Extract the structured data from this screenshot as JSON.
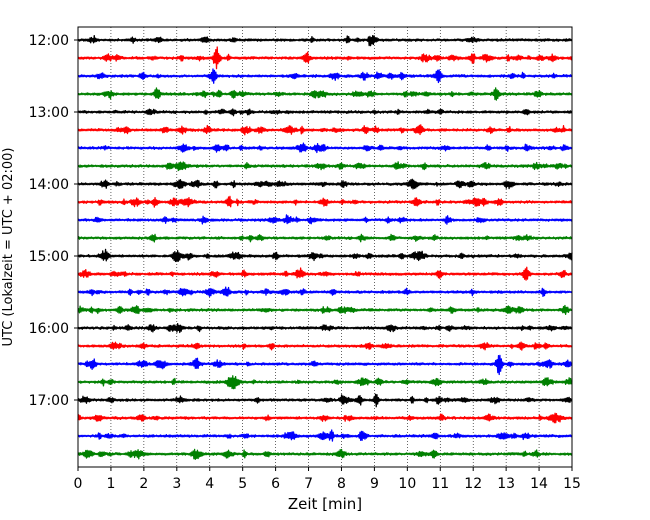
{
  "chart_data": {
    "type": "line",
    "title": "",
    "xlabel": "Zeit  [min]",
    "ylabel": "UTC (Lokalzeit = UTC + 02:00)",
    "xlim": [
      0,
      15
    ],
    "xticks": [
      0,
      1,
      2,
      3,
      4,
      5,
      6,
      7,
      8,
      9,
      10,
      11,
      12,
      13,
      14,
      15
    ],
    "ytick_labels": [
      "12:00",
      "13:00",
      "14:00",
      "15:00",
      "16:00",
      "17:00"
    ],
    "trace_start": "12:00",
    "trace_interval_min": 15,
    "trace_count": 24,
    "colors": [
      "#000000",
      "#ff0000",
      "#0000ff",
      "#008000"
    ],
    "grid_x": true,
    "grid_style": "dotted",
    "events": [
      {
        "trace": 1,
        "x": 4.2,
        "amp": 11
      },
      {
        "trace": 3,
        "x": 2.4,
        "amp": 6
      },
      {
        "trace": 3,
        "x": 12.7,
        "amp": 6
      },
      {
        "trace": 13,
        "x": 13.6,
        "amp": 7
      },
      {
        "trace": 18,
        "x": 12.8,
        "amp": 10
      },
      {
        "trace": 2,
        "x": 4.1,
        "amp": 5
      },
      {
        "trace": 9,
        "x": 4.6,
        "amp": 5
      },
      {
        "trace": 7,
        "x": 9.7,
        "amp": 4
      }
    ]
  }
}
